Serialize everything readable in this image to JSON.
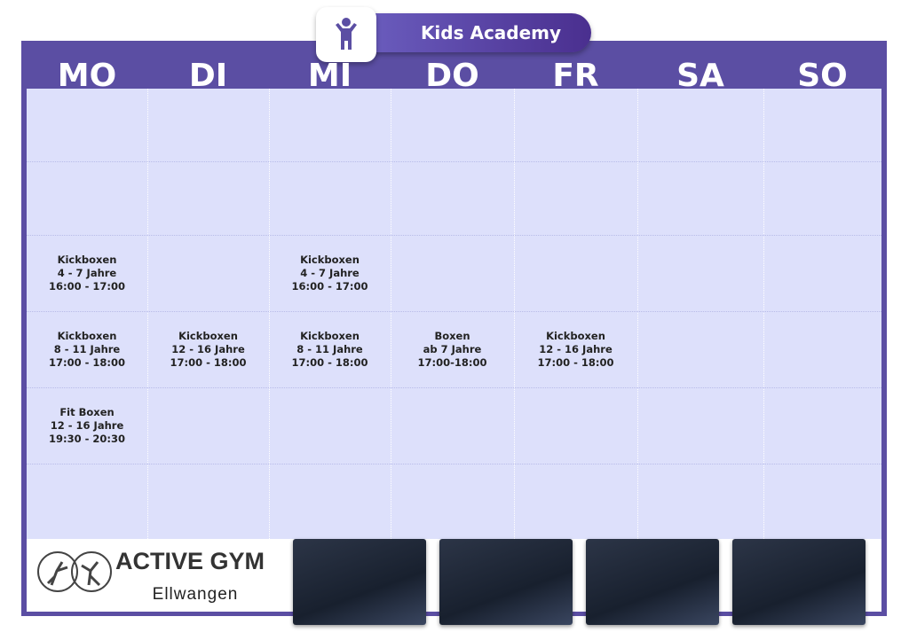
{
  "header": {
    "title": "Kids Academy"
  },
  "days": [
    "MO",
    "DI",
    "MI",
    "DO",
    "FR",
    "SA",
    "SO"
  ],
  "schedule": {
    "rows": [
      [
        null,
        null,
        null,
        null,
        null,
        null,
        null
      ],
      [
        null,
        null,
        null,
        null,
        null,
        null,
        null
      ],
      [
        [
          "Kickboxen",
          "4 - 7 Jahre",
          "16:00 - 17:00"
        ],
        null,
        [
          "Kickboxen",
          "4 - 7 Jahre",
          "16:00 - 17:00"
        ],
        null,
        null,
        null,
        null
      ],
      [
        [
          "Kickboxen",
          "8 - 11 Jahre",
          "17:00 - 18:00"
        ],
        [
          "Kickboxen",
          "12 - 16 Jahre",
          "17:00 - 18:00"
        ],
        [
          "Kickboxen",
          "8 - 11 Jahre",
          "17:00 - 18:00"
        ],
        [
          "Boxen",
          "ab 7 Jahre",
          "17:00-18:00"
        ],
        [
          "Kickboxen",
          "12 - 16 Jahre",
          "17:00 - 18:00"
        ],
        null,
        null
      ],
      [
        [
          "Fit Boxen",
          "12 - 16 Jahre",
          "19:30 - 20:30"
        ],
        null,
        null,
        null,
        null,
        null,
        null
      ],
      [
        null,
        null,
        null,
        null,
        null,
        null,
        null
      ]
    ]
  },
  "logo": {
    "name": "ACTIVE GYM",
    "city": "Ellwangen"
  }
}
